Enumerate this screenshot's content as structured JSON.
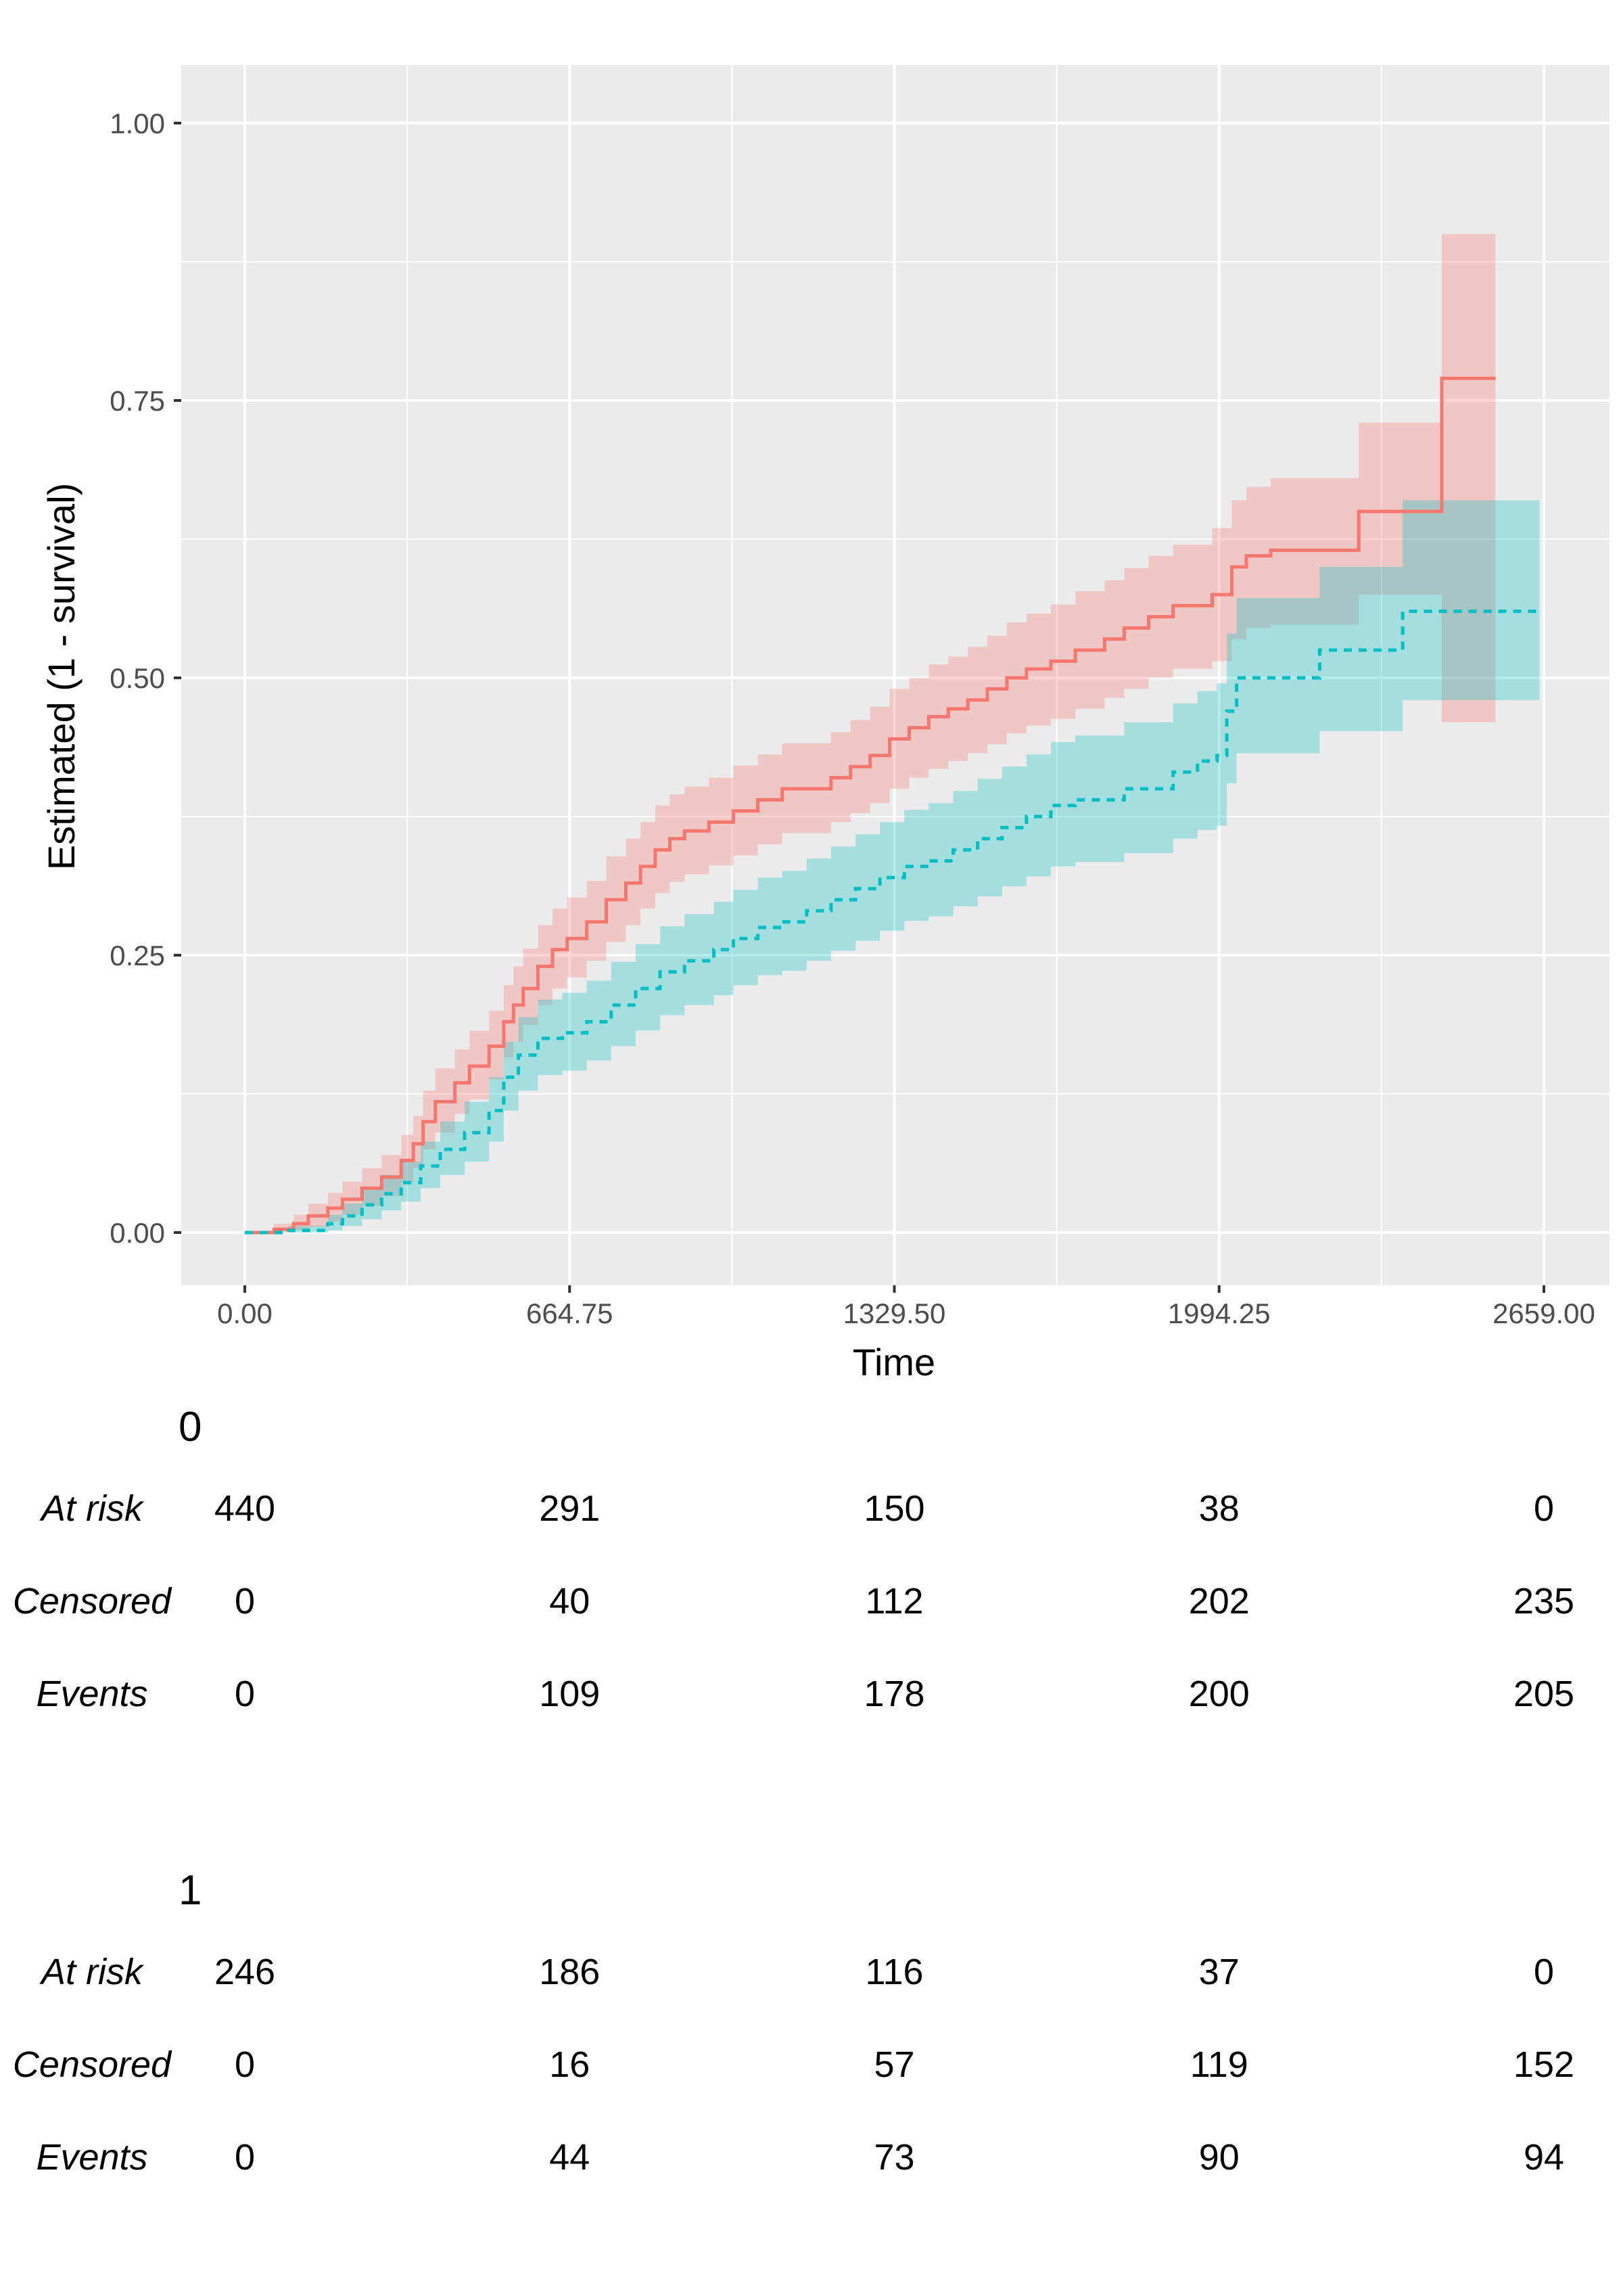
{
  "chart_data": {
    "type": "line",
    "title": "",
    "xlabel": "Time",
    "ylabel": "Estimated (1 - survival)",
    "xlim": [
      0,
      2659
    ],
    "ylim": [
      0,
      1
    ],
    "x_ticks": [
      0,
      664.75,
      1329.5,
      1994.25,
      2659
    ],
    "x_tick_labels": [
      "0.00",
      "664.75",
      "1329.50",
      "1994.25",
      "2659.00"
    ],
    "y_ticks": [
      0,
      0.25,
      0.5,
      0.75,
      1
    ],
    "y_tick_labels": [
      "0.00",
      "0.25",
      "0.50",
      "0.75",
      "1.00"
    ],
    "grid": true,
    "panel_background": "#ebebeb",
    "step": true,
    "series": [
      {
        "color": "#F8766D",
        "line_style": "solid",
        "x": [
          0,
          60,
          100,
          130,
          170,
          200,
          240,
          280,
          320,
          345,
          365,
          390,
          430,
          460,
          500,
          530,
          550,
          570,
          600,
          630,
          660,
          700,
          740,
          780,
          810,
          840,
          870,
          900,
          950,
          1000,
          1050,
          1100,
          1200,
          1240,
          1280,
          1320,
          1360,
          1400,
          1440,
          1480,
          1520,
          1560,
          1600,
          1650,
          1700,
          1760,
          1800,
          1850,
          1900,
          1980,
          2020,
          2050,
          2100,
          2280,
          2450,
          2560
        ],
        "y": [
          0,
          0.003,
          0.008,
          0.015,
          0.022,
          0.03,
          0.04,
          0.05,
          0.065,
          0.08,
          0.1,
          0.118,
          0.135,
          0.15,
          0.168,
          0.19,
          0.205,
          0.22,
          0.24,
          0.255,
          0.265,
          0.28,
          0.3,
          0.315,
          0.33,
          0.345,
          0.355,
          0.362,
          0.37,
          0.38,
          0.39,
          0.4,
          0.41,
          0.42,
          0.43,
          0.445,
          0.455,
          0.465,
          0.472,
          0.48,
          0.49,
          0.5,
          0.508,
          0.515,
          0.525,
          0.535,
          0.545,
          0.555,
          0.565,
          0.575,
          0.6,
          0.61,
          0.615,
          0.65,
          0.77,
          0.77
        ],
        "ci_lower": [
          0,
          0,
          0.002,
          0.005,
          0.01,
          0.016,
          0.024,
          0.033,
          0.045,
          0.058,
          0.075,
          0.09,
          0.107,
          0.12,
          0.138,
          0.158,
          0.172,
          0.187,
          0.205,
          0.22,
          0.23,
          0.245,
          0.262,
          0.277,
          0.292,
          0.306,
          0.316,
          0.323,
          0.331,
          0.34,
          0.35,
          0.36,
          0.37,
          0.378,
          0.387,
          0.4,
          0.41,
          0.418,
          0.425,
          0.432,
          0.44,
          0.45,
          0.457,
          0.463,
          0.472,
          0.482,
          0.49,
          0.5,
          0.508,
          0.515,
          0.535,
          0.545,
          0.548,
          0.575,
          0.46,
          0.46
        ],
        "ci_upper": [
          0,
          0.008,
          0.016,
          0.026,
          0.036,
          0.046,
          0.058,
          0.07,
          0.088,
          0.105,
          0.128,
          0.148,
          0.165,
          0.182,
          0.2,
          0.223,
          0.24,
          0.256,
          0.277,
          0.292,
          0.302,
          0.317,
          0.339,
          0.355,
          0.37,
          0.385,
          0.395,
          0.402,
          0.41,
          0.421,
          0.431,
          0.441,
          0.451,
          0.462,
          0.474,
          0.49,
          0.5,
          0.512,
          0.519,
          0.528,
          0.538,
          0.55,
          0.558,
          0.566,
          0.578,
          0.588,
          0.599,
          0.61,
          0.62,
          0.635,
          0.66,
          0.672,
          0.68,
          0.73,
          0.9,
          0.9
        ]
      },
      {
        "color": "#00BFC4",
        "line_style": "dashed",
        "x": [
          0,
          90,
          170,
          200,
          240,
          280,
          320,
          360,
          400,
          450,
          500,
          530,
          560,
          600,
          650,
          700,
          750,
          800,
          850,
          900,
          960,
          1000,
          1050,
          1100,
          1150,
          1200,
          1250,
          1300,
          1350,
          1400,
          1450,
          1500,
          1550,
          1600,
          1650,
          1700,
          1800,
          1900,
          1950,
          1990,
          2010,
          2030,
          2200,
          2370,
          2650
        ],
        "y": [
          0,
          0.002,
          0.008,
          0.015,
          0.025,
          0.035,
          0.045,
          0.06,
          0.075,
          0.09,
          0.11,
          0.14,
          0.16,
          0.175,
          0.18,
          0.19,
          0.205,
          0.22,
          0.235,
          0.245,
          0.255,
          0.265,
          0.275,
          0.28,
          0.29,
          0.3,
          0.31,
          0.32,
          0.33,
          0.335,
          0.345,
          0.355,
          0.365,
          0.375,
          0.385,
          0.39,
          0.4,
          0.415,
          0.425,
          0.43,
          0.47,
          0.5,
          0.525,
          0.56,
          0.56
        ],
        "ci_lower": [
          0,
          0,
          0.002,
          0.006,
          0.012,
          0.02,
          0.028,
          0.04,
          0.052,
          0.064,
          0.082,
          0.11,
          0.128,
          0.142,
          0.146,
          0.155,
          0.168,
          0.182,
          0.196,
          0.205,
          0.214,
          0.223,
          0.232,
          0.236,
          0.245,
          0.254,
          0.263,
          0.272,
          0.281,
          0.285,
          0.294,
          0.303,
          0.312,
          0.321,
          0.33,
          0.334,
          0.342,
          0.355,
          0.363,
          0.367,
          0.405,
          0.432,
          0.452,
          0.48,
          0.48
        ],
        "ci_upper": [
          0,
          0.006,
          0.016,
          0.026,
          0.04,
          0.052,
          0.064,
          0.082,
          0.1,
          0.118,
          0.14,
          0.172,
          0.194,
          0.21,
          0.216,
          0.227,
          0.244,
          0.26,
          0.276,
          0.287,
          0.298,
          0.309,
          0.32,
          0.326,
          0.337,
          0.348,
          0.359,
          0.37,
          0.381,
          0.387,
          0.398,
          0.409,
          0.42,
          0.431,
          0.442,
          0.448,
          0.46,
          0.477,
          0.488,
          0.495,
          0.54,
          0.572,
          0.6,
          0.66,
          0.66
        ]
      }
    ]
  },
  "risk_table": {
    "row_labels": [
      "At risk",
      "Censored",
      "Events"
    ],
    "groups": [
      {
        "title": "0",
        "rows": [
          [
            "440",
            "291",
            "150",
            "38",
            "0"
          ],
          [
            "0",
            "40",
            "112",
            "202",
            "235"
          ],
          [
            "0",
            "109",
            "178",
            "200",
            "205"
          ]
        ]
      },
      {
        "title": "1",
        "rows": [
          [
            "246",
            "186",
            "116",
            "37",
            "0"
          ],
          [
            "0",
            "16",
            "57",
            "119",
            "152"
          ],
          [
            "0",
            "44",
            "73",
            "90",
            "94"
          ]
        ]
      }
    ]
  }
}
